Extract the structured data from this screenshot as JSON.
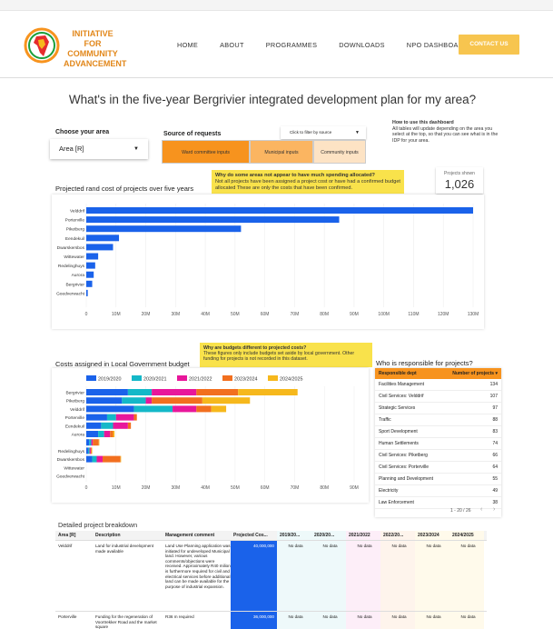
{
  "brand": {
    "line1": "INITIATIVE FOR",
    "line2": "COMMUNITY",
    "line3": "ADVANCEMENT"
  },
  "nav": [
    "HOME",
    "ABOUT",
    "PROGRAMMES",
    "DOWNLOADS",
    "NPO DASHBOARDS"
  ],
  "contact_label": "CONTACT US",
  "page_title": "What's in the five-year Bergrivier integrated development plan for my area?",
  "area": {
    "label": "Choose your area",
    "value": "Area [R]"
  },
  "source": {
    "label": "Source of requests",
    "filter_placeholder": "Click to filter by source",
    "buttons": [
      "Ward committee inputs",
      "Municipal inputs",
      "Community inputs"
    ]
  },
  "howto": {
    "title": "How to use this dashboard",
    "text": "All tables will update depending on the area you select at the top, so that you can see what is in the IDP for your area."
  },
  "why1": {
    "title": "Why do some areas not appear to have much spending allocated?",
    "text": "Not all projects have been assigned a project cost or have had a confirmed budget allocated These are only the costs that have been confirmed."
  },
  "projects_shown": {
    "label": "Projects shown",
    "value": "1,026"
  },
  "why2": {
    "title": "Why are budgets different to projected costs?",
    "text": "These figures only include budgets set aside by local government. Other funding for projects is not recorded in this dataset."
  },
  "colors": {
    "blue": "#1a62ea",
    "teal": "#14b8c8",
    "pink": "#e8179b",
    "orange": "#f26f1f",
    "yellow": "#f6b81c",
    "accent": "#f7931e"
  },
  "chart_data": [
    {
      "type": "bar",
      "title": "Projected rand cost of projects over five years",
      "orientation": "horizontal",
      "categories": [
        "Velddrif",
        "Porterville",
        "Piketberg",
        "Eendekuil",
        "Dwarskersbos",
        "Wittewater",
        "Redelinghuys",
        "Aurora",
        "Bergrivier",
        "Goedverwacht"
      ],
      "values": [
        130000000,
        85000000,
        52000000,
        11000000,
        9000000,
        4000000,
        3000000,
        2500000,
        2000000,
        500000
      ],
      "xlim": [
        0,
        130000000
      ],
      "xticks": [
        "0",
        "10M",
        "20M",
        "30M",
        "40M",
        "50M",
        "60M",
        "70M",
        "80M",
        "90M",
        "100M",
        "110M",
        "120M",
        "130M"
      ]
    },
    {
      "type": "bar",
      "title": "Costs assigned in Local Government budget",
      "orientation": "horizontal",
      "stacked": true,
      "categories": [
        "Bergrivier",
        "Piketberg",
        "Velddrif",
        "Porterville",
        "Eendekuil",
        "Aurora",
        "",
        "Redelinghuys",
        "Dwarskersbos",
        "Wittewater",
        "Goedverwacht"
      ],
      "series": [
        {
          "name": "2019/2020",
          "values": [
            14000000,
            12000000,
            16000000,
            7000000,
            5000000,
            4000000,
            1000000,
            600000,
            2000000,
            0,
            0
          ]
        },
        {
          "name": "2020/2021",
          "values": [
            8000000,
            8000000,
            13000000,
            3000000,
            4000000,
            2000000,
            700000,
            500000,
            1500000,
            0,
            0
          ]
        },
        {
          "name": "2021/2022",
          "values": [
            15000000,
            2000000,
            8000000,
            6000000,
            5000000,
            2000000,
            500000,
            400000,
            2000000,
            0,
            0
          ]
        },
        {
          "name": "2023/2024",
          "values": [
            14000000,
            17000000,
            5000000,
            1000000,
            1000000,
            1000000,
            2000000,
            300000,
            6000000,
            0,
            0
          ]
        },
        {
          "name": "2024/2025",
          "values": [
            20000000,
            16000000,
            5000000,
            0,
            0,
            500000,
            200000,
            200000,
            200000,
            0,
            0
          ]
        }
      ],
      "xlim": [
        0,
        90000000
      ],
      "xticks": [
        "0",
        "10M",
        "20M",
        "30M",
        "40M",
        "50M",
        "60M",
        "70M",
        "80M",
        "90M"
      ],
      "legend": "top"
    }
  ],
  "who": {
    "title": "Who is responsible for projects?",
    "headers": [
      "Responsible dept",
      "Number of projects ▾"
    ],
    "rows": [
      [
        "Facilities Management",
        "134"
      ],
      [
        "Civil Services: Velddrif",
        "107"
      ],
      [
        "Strategic Services",
        "97"
      ],
      [
        "Traffic",
        "88"
      ],
      [
        "Sport Development",
        "83"
      ],
      [
        "Human Settlements",
        "74"
      ],
      [
        "Civil Services: Piketberg",
        "66"
      ],
      [
        "Civil Services: Porterville",
        "64"
      ],
      [
        "Planning and Development",
        "55"
      ],
      [
        "Electricity",
        "49"
      ],
      [
        "Law Enforcement",
        "38"
      ]
    ],
    "pager": "1 - 20 / 26"
  },
  "detail": {
    "title": "Detailed project breakdown",
    "headers": [
      "Area [R]",
      "Description",
      "Management comment",
      "Projected Cos...",
      "2019/20...",
      "2020/20...",
      "2021/2022",
      "2022/20...",
      "2023/2024",
      "2024/2025"
    ],
    "rows": [
      [
        "Velddrif",
        "Land for industrial development made available",
        "Land Use Planning application was initiated for undeveloped Municipal land. However, various comments/objections were received. Approximately R40 milion is furthermore required for civil and electrical services before additional land can be made available for the purpose of industrial expansion.",
        "40,000,000",
        "No data",
        "No data",
        "No data",
        "No data",
        "No data",
        "No data"
      ],
      [
        "Porterville",
        "Funding for the regeneration of Voortrekker Road and the market square",
        "R36 m required",
        "36,000,000",
        "No data",
        "No data",
        "No data",
        "No data",
        "No data",
        "No data"
      ]
    ]
  }
}
